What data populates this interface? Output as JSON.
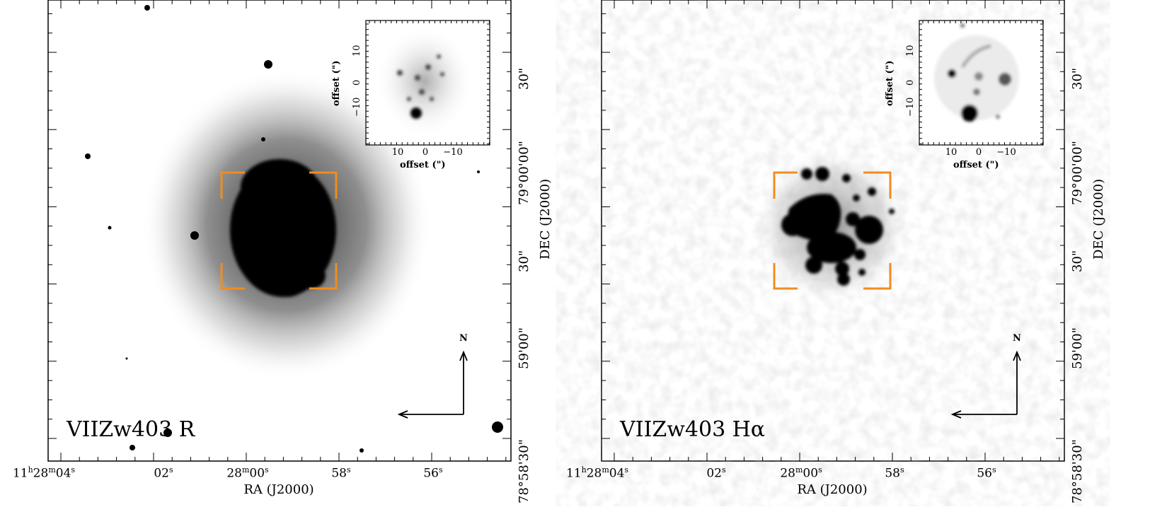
{
  "panels": [
    {
      "label": "VIIZw403  R",
      "ra_ticks": [
        {
          "h": "11",
          "hs": "h",
          "m": "28",
          "ms": "m",
          "s": "04",
          "ss": "s"
        },
        {
          "s": "02",
          "ss": "s"
        },
        {
          "m": "28",
          "ms": "m",
          "s": "00",
          "ss": "s"
        },
        {
          "s": "58",
          "ss": "s"
        },
        {
          "s": "56",
          "ss": "s"
        }
      ],
      "ra_title": "RA (J2000)",
      "dec_ticks": [
        "78°58'30\"",
        "59'00\"",
        "30\"",
        "79°00'00\"",
        "30\""
      ],
      "dec_title": "DEC (J2000)",
      "inset": {
        "xticks": [
          "10",
          "0",
          "−10"
        ],
        "yticks": [
          "−10",
          "0",
          "10"
        ],
        "xlabel": "offset (\")",
        "ylabel": "offset (\")"
      },
      "compass": {
        "north": "N"
      }
    },
    {
      "label": "VIIZw403  Hα",
      "ra_ticks": [
        {
          "h": "11",
          "hs": "h",
          "m": "28",
          "ms": "m",
          "s": "04",
          "ss": "s"
        },
        {
          "s": "02",
          "ss": "s"
        },
        {
          "m": "28",
          "ms": "m",
          "s": "00",
          "ss": "s"
        },
        {
          "s": "58",
          "ss": "s"
        },
        {
          "s": "56",
          "ss": "s"
        }
      ],
      "ra_title": "RA (J2000)",
      "dec_ticks": [
        "78°58'30\"",
        "59'00\"",
        "30\"",
        "79°00'00\"",
        "30\""
      ],
      "dec_title": "DEC (J2000)",
      "inset": {
        "xticks": [
          "10",
          "0",
          "−10"
        ],
        "yticks": [
          "−10",
          "0",
          "10"
        ],
        "xlabel": "offset (\")",
        "ylabel": "offset (\")"
      },
      "compass": {
        "north": "N"
      }
    }
  ],
  "colors": {
    "bracket": "#f28c1e",
    "ink": "#000000",
    "background": "#ffffff"
  }
}
